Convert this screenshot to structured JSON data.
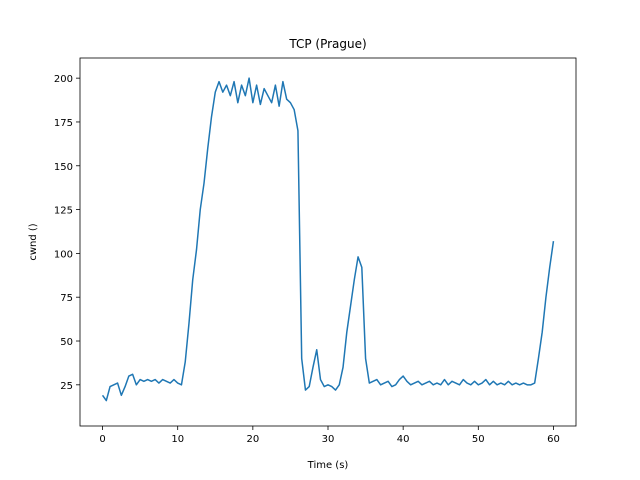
{
  "chart_data": {
    "type": "line",
    "title": "TCP (Prague)",
    "x_label": "Time (s)",
    "y_label": "cwnd ()",
    "x": [
      0,
      0.5,
      1,
      1.5,
      2,
      2.5,
      3,
      3.5,
      4,
      4.5,
      5,
      5.5,
      6,
      6.5,
      7,
      7.5,
      8,
      8.5,
      9,
      9.5,
      10,
      10.5,
      11,
      11.5,
      12,
      12.5,
      13,
      13.5,
      14,
      14.5,
      15,
      15.5,
      16,
      16.5,
      17,
      17.5,
      18,
      18.5,
      19,
      19.5,
      20,
      20.5,
      21,
      21.5,
      22,
      22.5,
      23,
      23.5,
      24,
      24.5,
      25,
      25.5,
      26,
      26.5,
      27,
      27.5,
      28,
      28.5,
      29,
      29.5,
      30,
      30.5,
      31,
      31.5,
      32,
      32.5,
      33,
      33.5,
      34,
      34.5,
      35,
      35.5,
      36,
      36.5,
      37,
      37.5,
      38,
      38.5,
      39,
      39.5,
      40,
      40.5,
      41,
      41.5,
      42,
      42.5,
      43,
      43.5,
      44,
      44.5,
      45,
      45.5,
      46,
      46.5,
      47,
      47.5,
      48,
      48.5,
      49,
      49.5,
      50,
      50.5,
      51,
      51.5,
      52,
      52.5,
      53,
      53.5,
      54,
      54.5,
      55,
      55.5,
      56,
      56.5,
      57,
      57.5,
      58,
      58.5,
      59,
      59.5,
      60
    ],
    "series": [
      {
        "color": "#1f77b4",
        "values": [
          19,
          16,
          24,
          25,
          26,
          19,
          24,
          30,
          31,
          25,
          28,
          27,
          28,
          27,
          28,
          26,
          28,
          27,
          26,
          28,
          26,
          25,
          38,
          60,
          85,
          102,
          125,
          140,
          160,
          178,
          192,
          198,
          192,
          196,
          190,
          198,
          186,
          196,
          190,
          200,
          186,
          196,
          185,
          194,
          190,
          186,
          196,
          184,
          198,
          188,
          186,
          182,
          170,
          40,
          22,
          24,
          35,
          45,
          28,
          24,
          25,
          24,
          22,
          25,
          35,
          55,
          70,
          85,
          98,
          92,
          40,
          26,
          27,
          28,
          25,
          26,
          27,
          24,
          25,
          28,
          30,
          27,
          25,
          26,
          27,
          25,
          26,
          27,
          25,
          26,
          25,
          28,
          25,
          27,
          26,
          25,
          28,
          26,
          25,
          27,
          25,
          26,
          28,
          25,
          27,
          25,
          26,
          25,
          27,
          25,
          26,
          25,
          26,
          25,
          25,
          26,
          40,
          55,
          75,
          92,
          107
        ]
      }
    ],
    "xlim": [
      -3,
      63
    ],
    "ylim": [
      1.5,
      211.5
    ],
    "xticks": [
      0,
      10,
      20,
      30,
      40,
      50,
      60
    ],
    "yticks": [
      25,
      50,
      75,
      100,
      125,
      150,
      175,
      200
    ]
  }
}
